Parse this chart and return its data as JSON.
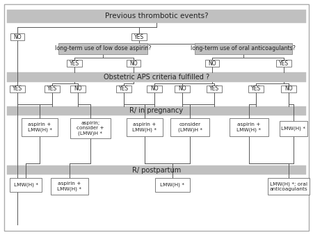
{
  "fig_width": 4.5,
  "fig_height": 3.38,
  "dpi": 100,
  "bg_color": "#ffffff",
  "outer_border_color": "#999999",
  "gray_band_color": "#c0c0c0",
  "box_bg": "#ffffff",
  "box_edge": "#666666",
  "line_color": "#555555",
  "title_text": "Previous thrombotic events?",
  "band1_text": "Obstetric APS criteria fulfilled ?",
  "band2_text": "R/ in pregnancy",
  "band3_text": "R/ postpartum",
  "q1_text": "long-term use of low dose aspirin?",
  "q2_text": "long-term use of oral anticoagulants?",
  "rx1": "aspirin +\nLMW(H) *",
  "rx2": "aspirin;\nconsider +\n(LMW)H *",
  "rx3": "aspirin +\nLMW(H) *",
  "rx4": "consider\n(LMW)H *",
  "rx5": "aspirin +\nLMW(H) *",
  "rx6": "LMW(H) *",
  "pp1": "LMW(H) *",
  "pp2": "aspirin +\nLMW(H) *",
  "pp3": "LMW(H) *",
  "pp4": "LMW(H) *; oral\nanticoagulants"
}
